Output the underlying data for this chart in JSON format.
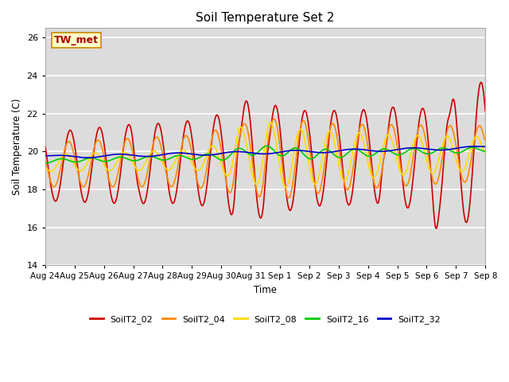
{
  "title": "Soil Temperature Set 2",
  "xlabel": "Time",
  "ylabel": "Soil Temperature (C)",
  "ylim": [
    14,
    26.5
  ],
  "xlim": [
    0,
    15
  ],
  "background_color": "#dcdcdc",
  "grid_color": "white",
  "annotation": "TW_met",
  "annotation_color": "#aa0000",
  "annotation_bg": "#ffffcc",
  "annotation_border": "#cc8800",
  "series": {
    "SoilT2_02": {
      "color": "#cc0000",
      "lw": 1.2
    },
    "SoilT2_04": {
      "color": "#ff8800",
      "lw": 1.2
    },
    "SoilT2_08": {
      "color": "#ffdd00",
      "lw": 1.2
    },
    "SoilT2_16": {
      "color": "#00cc00",
      "lw": 1.2
    },
    "SoilT2_32": {
      "color": "#0000cc",
      "lw": 1.2
    }
  },
  "xtick_labels": [
    "Aug 24",
    "Aug 25",
    "Aug 26",
    "Aug 27",
    "Aug 28",
    "Aug 29",
    "Aug 30",
    "Aug 31",
    "Sep 1",
    "Sep 2",
    "Sep 3",
    "Sep 4",
    "Sep 5",
    "Sep 6",
    "Sep 7",
    "Sep 8"
  ],
  "xtick_positions": [
    0,
    1,
    2,
    3,
    4,
    5,
    6,
    7,
    8,
    9,
    10,
    11,
    12,
    13,
    14,
    15
  ],
  "ytick_labels": [
    "14",
    "16",
    "18",
    "20",
    "22",
    "24",
    "26"
  ],
  "ytick_positions": [
    14,
    16,
    18,
    20,
    22,
    24,
    26
  ]
}
